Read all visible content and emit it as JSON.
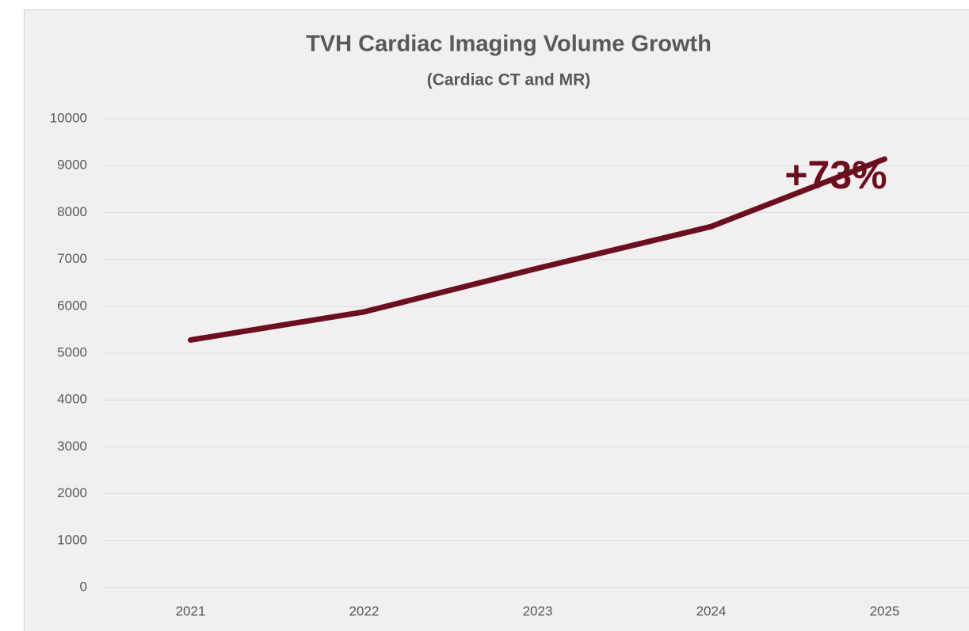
{
  "chart_data": {
    "type": "line",
    "title": "TVH Cardiac Imaging Volume Growth",
    "subtitle": "(Cardiac CT and MR)",
    "annotation": "+73%",
    "categories": [
      "2021",
      "2022",
      "2023",
      "2024",
      "2025"
    ],
    "series": [
      {
        "name": "Cardiac CT and MR",
        "color": "#6b0f1f",
        "values": [
          5280,
          5880,
          6810,
          7700,
          9140
        ]
      }
    ],
    "ylim": [
      0,
      10000
    ],
    "yticks": [
      0,
      1000,
      2000,
      3000,
      4000,
      5000,
      6000,
      7000,
      8000,
      9000,
      10000
    ],
    "grid": true
  }
}
